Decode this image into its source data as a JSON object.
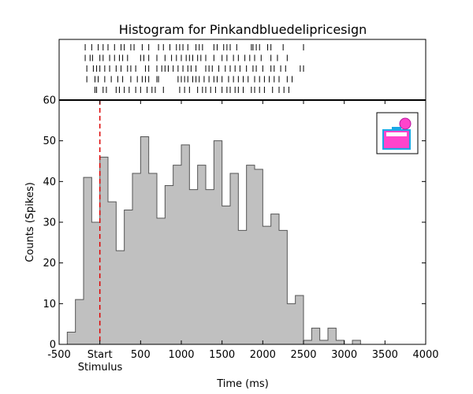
{
  "chart_data": {
    "type": "bar",
    "title": "Histogram for Pinkandbluedelipricesign",
    "xlabel": "Time (ms)",
    "ylabel": "Counts (Spikes)",
    "xlim": [
      -500,
      4000
    ],
    "ylim": [
      0,
      60
    ],
    "x_ticks": [
      -500,
      0,
      500,
      1000,
      1500,
      2000,
      2500,
      3000,
      3500,
      4000
    ],
    "x_tick_labels": [
      "-500",
      "Start",
      "500",
      "1000",
      "1500",
      "2000",
      "2500",
      "3000",
      "3500",
      "4000"
    ],
    "x_tick_sublabel": "Stimulus",
    "y_ticks": [
      0,
      10,
      20,
      30,
      40,
      50,
      60
    ],
    "bin_width_ms": 100,
    "bins_start_ms": [
      -400,
      -300,
      -200,
      -100,
      0,
      100,
      200,
      300,
      400,
      500,
      600,
      700,
      800,
      900,
      1000,
      1100,
      1200,
      1300,
      1400,
      1500,
      1600,
      1700,
      1800,
      1900,
      2000,
      2100,
      2200,
      2300,
      2400,
      2500,
      2600,
      2700,
      2800,
      2900,
      3000,
      3100,
      3200
    ],
    "values": [
      3,
      11,
      41,
      30,
      46,
      35,
      23,
      33,
      42,
      51,
      42,
      31,
      39,
      44,
      49,
      38,
      44,
      38,
      50,
      34,
      42,
      28,
      44,
      43,
      29,
      32,
      28,
      10,
      12,
      1,
      4,
      1,
      4,
      1,
      0,
      1,
      0
    ],
    "stimulus_marker_ms": 0,
    "bar_fill": "#c0c0c0",
    "bar_edge": "#555555",
    "marker_color": "#dd0000",
    "grid": false,
    "legend": "none",
    "raster": {
      "trials": [
        [
          -180,
          -100,
          -20,
          40,
          100,
          180,
          260,
          300,
          380,
          420,
          520,
          600,
          720,
          780,
          860,
          940,
          980,
          1020,
          1080,
          1180,
          1220,
          1260,
          1400,
          1440,
          1520,
          1560,
          1600,
          1680,
          1860,
          1880,
          1920,
          1960,
          2060,
          2100,
          2250,
          2500
        ],
        [
          -180,
          -120,
          -90,
          0,
          40,
          120,
          180,
          240,
          280,
          340,
          500,
          540,
          600,
          700,
          800,
          880,
          940,
          1000,
          1060,
          1100,
          1140,
          1200,
          1240,
          1300,
          1400,
          1500,
          1560,
          1640,
          1700,
          1780,
          1840,
          1900,
          1980,
          2100,
          2180,
          2300
        ],
        [
          -160,
          -80,
          -40,
          0,
          60,
          120,
          200,
          260,
          340,
          380,
          440,
          560,
          600,
          700,
          760,
          800,
          840,
          900,
          960,
          1020,
          1080,
          1120,
          1180,
          1300,
          1340,
          1380,
          1460,
          1540,
          1600,
          1660,
          1720,
          1800,
          1880,
          1920,
          2000,
          2100,
          2140,
          2220,
          2280,
          2460,
          2500
        ],
        [
          -160,
          -60,
          -20,
          60,
          140,
          220,
          280,
          380,
          460,
          520,
          560,
          600,
          700,
          720,
          960,
          1000,
          1040,
          1080,
          1140,
          1180,
          1220,
          1280,
          1340,
          1400,
          1440,
          1500,
          1580,
          1640,
          1700,
          1760,
          1820,
          1900,
          1960,
          2020,
          2080,
          2140,
          2200,
          2300,
          2360
        ],
        [
          -60,
          -40,
          40,
          80,
          200,
          240,
          300,
          360,
          440,
          500,
          580,
          640,
          680,
          780,
          980,
          1040,
          1100,
          1200,
          1260,
          1300,
          1360,
          1420,
          1500,
          1560,
          1600,
          1660,
          1700,
          1760,
          1860,
          1900,
          1960,
          2020,
          2120,
          2200,
          2260,
          2320
        ]
      ]
    }
  }
}
